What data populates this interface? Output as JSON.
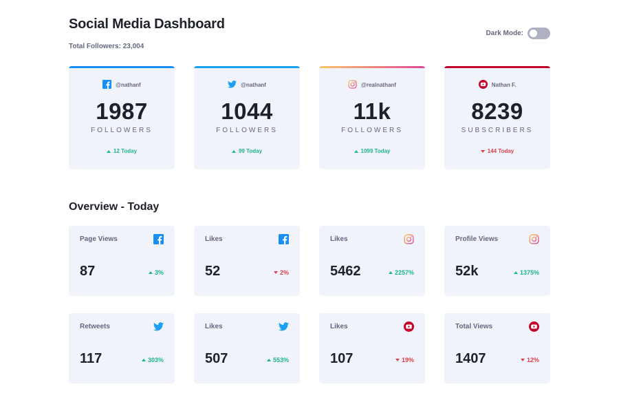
{
  "header": {
    "title": "Social Media Dashboard",
    "total_followers": "Total Followers: 23,004",
    "dark_mode_label": "Dark Mode:",
    "dark_mode_on": false
  },
  "colors": {
    "facebook": "#198ff5",
    "twitter": "#1ca0f2",
    "instagram_start": "#fdc468",
    "instagram_end": "#df4996",
    "youtube": "#c4032b",
    "up": "#1eb589",
    "down": "#dc414c",
    "card_bg": "#f0f3fa"
  },
  "cards": [
    {
      "platform": "facebook",
      "icon": "facebook-icon",
      "handle": "@nathanf",
      "count": "1987",
      "unit": "FOLLOWERS",
      "change": "12 Today",
      "direction": "up"
    },
    {
      "platform": "twitter",
      "icon": "twitter-icon",
      "handle": "@nathanf",
      "count": "1044",
      "unit": "FOLLOWERS",
      "change": "99 Today",
      "direction": "up"
    },
    {
      "platform": "instagram",
      "icon": "instagram-icon",
      "handle": "@realnathanf",
      "count": "11k",
      "unit": "FOLLOWERS",
      "change": "1099 Today",
      "direction": "up"
    },
    {
      "platform": "youtube",
      "icon": "youtube-icon",
      "handle": "Nathan F.",
      "count": "8239",
      "unit": "SUBSCRIBERS",
      "change": "144 Today",
      "direction": "down"
    }
  ],
  "overview": {
    "title": "Overview - Today",
    "tiles": [
      {
        "label": "Page Views",
        "icon": "facebook-icon",
        "value": "87",
        "change": "3%",
        "direction": "up"
      },
      {
        "label": "Likes",
        "icon": "facebook-icon",
        "value": "52",
        "change": "2%",
        "direction": "down"
      },
      {
        "label": "Likes",
        "icon": "instagram-icon",
        "value": "5462",
        "change": "2257%",
        "direction": "up"
      },
      {
        "label": "Profile Views",
        "icon": "instagram-icon",
        "value": "52k",
        "change": "1375%",
        "direction": "up"
      },
      {
        "label": "Retweets",
        "icon": "twitter-icon",
        "value": "117",
        "change": "303%",
        "direction": "up"
      },
      {
        "label": "Likes",
        "icon": "twitter-icon",
        "value": "507",
        "change": "553%",
        "direction": "up"
      },
      {
        "label": "Likes",
        "icon": "youtube-icon",
        "value": "107",
        "change": "19%",
        "direction": "down"
      },
      {
        "label": "Total Views",
        "icon": "youtube-icon",
        "value": "1407",
        "change": "12%",
        "direction": "down"
      }
    ]
  }
}
